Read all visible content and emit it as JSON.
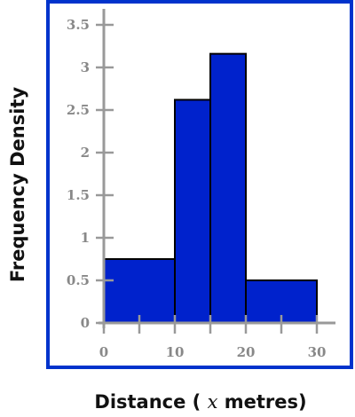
{
  "chart_data": {
    "type": "bar",
    "title": "",
    "xlabel": {
      "prefix": "Distance (",
      "variable": "x",
      "suffix": "metres)"
    },
    "ylabel": "Frequency Density",
    "xlim": [
      0,
      35
    ],
    "ylim": [
      0,
      3.6
    ],
    "x_ticks": [
      0,
      5,
      10,
      15,
      20,
      25,
      30
    ],
    "x_tick_labels": [
      {
        "value": 0,
        "label": "0"
      },
      {
        "value": 10,
        "label": "10"
      },
      {
        "value": 20,
        "label": "20"
      },
      {
        "value": 30,
        "label": "30"
      }
    ],
    "y_ticks": [
      {
        "value": 0,
        "label": "0"
      },
      {
        "value": 0.5,
        "label": "0.5"
      },
      {
        "value": 1,
        "label": "1"
      },
      {
        "value": 1.5,
        "label": "1.5"
      },
      {
        "value": 2,
        "label": "2"
      },
      {
        "value": 2.5,
        "label": "2.5"
      },
      {
        "value": 3,
        "label": "3"
      },
      {
        "value": 3.5,
        "label": "3.5"
      }
    ],
    "bins": [
      {
        "x0": 0,
        "x1": 10,
        "density": 0.75
      },
      {
        "x0": 10,
        "x1": 15,
        "density": 2.62
      },
      {
        "x0": 15,
        "x1": 20,
        "density": 3.16
      },
      {
        "x0": 20,
        "x1": 30,
        "density": 0.5
      }
    ],
    "grid": false,
    "colors": {
      "bar_fill": "#0022cc",
      "bar_stroke": "#000000",
      "frame": "#0033cc",
      "axis": "#999999"
    }
  }
}
